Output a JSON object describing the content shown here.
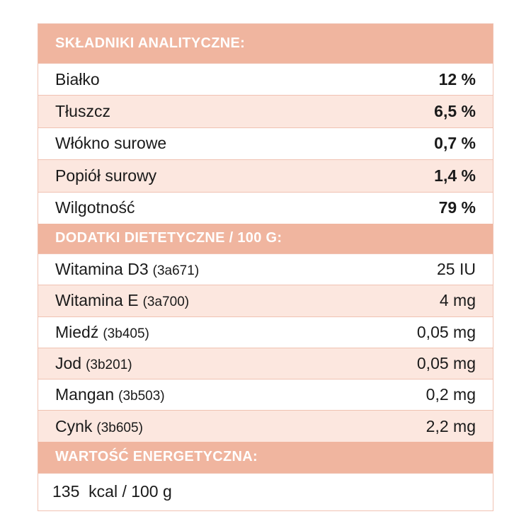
{
  "sections": [
    {
      "title": "SKŁADNIKI ANALITYCZNE:",
      "rows": [
        {
          "name": "Białko",
          "value": "12 %"
        },
        {
          "name": "Tłuszcz",
          "value": "6,5 %"
        },
        {
          "name": "Włókno surowe",
          "value": "0,7 %"
        },
        {
          "name": "Popiół surowy",
          "value": "1,4 %"
        },
        {
          "name": "Wilgotność",
          "value": "79 %"
        }
      ]
    },
    {
      "title": "DODATKI DIETETYCZNE / 100 G:",
      "rows": [
        {
          "name": "Witamina D3",
          "code": "(3a671)",
          "value": "25 IU"
        },
        {
          "name": "Witamina E",
          "code": "(3a700)",
          "value": "4 mg"
        },
        {
          "name": "Miedź",
          "code": "(3b405)",
          "value": "0,05 mg"
        },
        {
          "name": "Jod",
          "code": "(3b201)",
          "value": "0,05 mg"
        },
        {
          "name": "Mangan",
          "code": "(3b503)",
          "value": "0,2 mg"
        },
        {
          "name": "Cynk",
          "code": "(3b605)",
          "value": "2,2 mg"
        }
      ]
    },
    {
      "title": "WARTOŚĆ ENERGETYCZNA:",
      "text": "135  kcal / 100 g"
    }
  ]
}
